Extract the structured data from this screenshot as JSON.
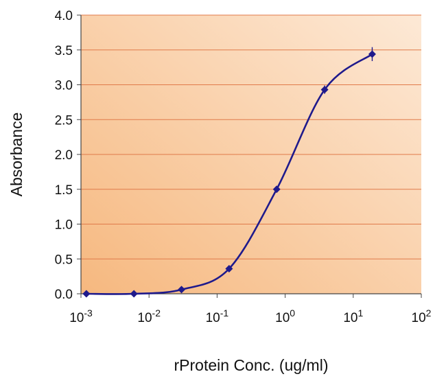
{
  "chart_data": {
    "type": "line",
    "title": "",
    "xlabel": "rProtein Conc. (ug/ml)",
    "ylabel": "Absorbance",
    "x_scale": "log10",
    "xlim": [
      0.001,
      100
    ],
    "ylim": [
      0,
      4.0
    ],
    "grid": "horizontal",
    "legend": "none",
    "x_ticks": [
      {
        "base": "10",
        "exp": "-3",
        "value": 0.001
      },
      {
        "base": "10",
        "exp": "-2",
        "value": 0.01
      },
      {
        "base": "10",
        "exp": "-1",
        "value": 0.1
      },
      {
        "base": "10",
        "exp": "0",
        "value": 1
      },
      {
        "base": "10",
        "exp": "1",
        "value": 10
      },
      {
        "base": "10",
        "exp": "2",
        "value": 100
      }
    ],
    "y_ticks": [
      "0.0",
      "0.5",
      "1.0",
      "1.5",
      "2.0",
      "2.5",
      "3.0",
      "3.5",
      "4.0"
    ],
    "series": [
      {
        "name": "Absorbance",
        "color": "#1f1a8c",
        "x": [
          0.0012,
          0.006,
          0.03,
          0.15,
          0.75,
          3.8,
          19
        ],
        "y": [
          0.0,
          0.0,
          0.06,
          0.36,
          1.5,
          2.93,
          3.44
        ],
        "error": [
          0.01,
          0.01,
          0.02,
          0.03,
          0.03,
          0.06,
          0.1
        ]
      }
    ],
    "colors": {
      "plot_bg_light": "#fde9d6",
      "plot_bg_dark": "#f6b87f",
      "gridline": "#e07a4a",
      "axis": "#444444",
      "line": "#1f1a8c"
    }
  }
}
